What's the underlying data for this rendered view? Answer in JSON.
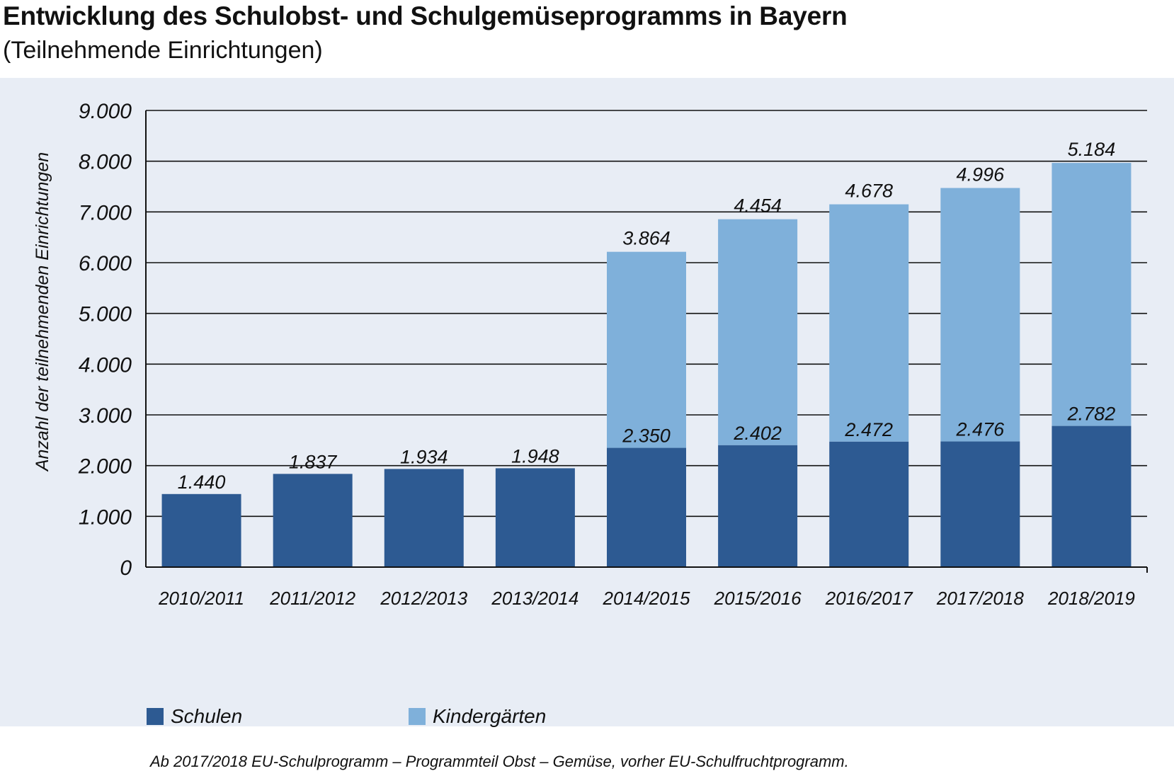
{
  "title": "Entwicklung des Schulobst- und Schulgemüseprogramms in Bayern",
  "subtitle": "(Teilnehmende Einrichtungen)",
  "note": "Ab 2017/2018 EU-Schulprogramm – Programmteil Obst – Gemüse, vorher EU-Schulfruchtprogramm.",
  "colors": {
    "schulen": "#2d5a92",
    "kindergaerten": "#7fb0da",
    "panel": "#e8edf5",
    "grid": "#111111"
  },
  "chart_data": {
    "type": "bar",
    "stacked": true,
    "title": "Entwicklung des Schulobst- und Schulgemüseprogramms in Bayern",
    "subtitle": "(Teilnehmende Einrichtungen)",
    "xlabel": "",
    "ylabel": "Anzahl der teilnehmenden Einrichtungen",
    "ylim": [
      0,
      9000
    ],
    "yticks": [
      0,
      1000,
      2000,
      3000,
      4000,
      5000,
      6000,
      7000,
      8000,
      9000
    ],
    "ytick_labels": [
      "0",
      "1.000",
      "2.000",
      "3.000",
      "4.000",
      "5.000",
      "6.000",
      "7.000",
      "8.000",
      "9.000"
    ],
    "grid": true,
    "legend_position": "bottom-left",
    "categories": [
      "2010/2011",
      "2011/2012",
      "2012/2013",
      "2013/2014",
      "2014/2015",
      "2015/2016",
      "2016/2017",
      "2017/2018",
      "2018/2019"
    ],
    "series": [
      {
        "name": "Schulen",
        "values": [
          1440,
          1837,
          1934,
          1948,
          2350,
          2402,
          2472,
          2476,
          2782
        ],
        "labels": [
          "1.440",
          "1.837",
          "1.934",
          "1.948",
          "2.350",
          "2.402",
          "2.472",
          "2.476",
          "2.782"
        ]
      },
      {
        "name": "Kindergärten",
        "values": [
          0,
          0,
          0,
          0,
          3864,
          4454,
          4678,
          4996,
          5184
        ],
        "labels": [
          "",
          "",
          "",
          "",
          "3.864",
          "4.454",
          "4.678",
          "4.996",
          "5.184"
        ]
      }
    ]
  }
}
